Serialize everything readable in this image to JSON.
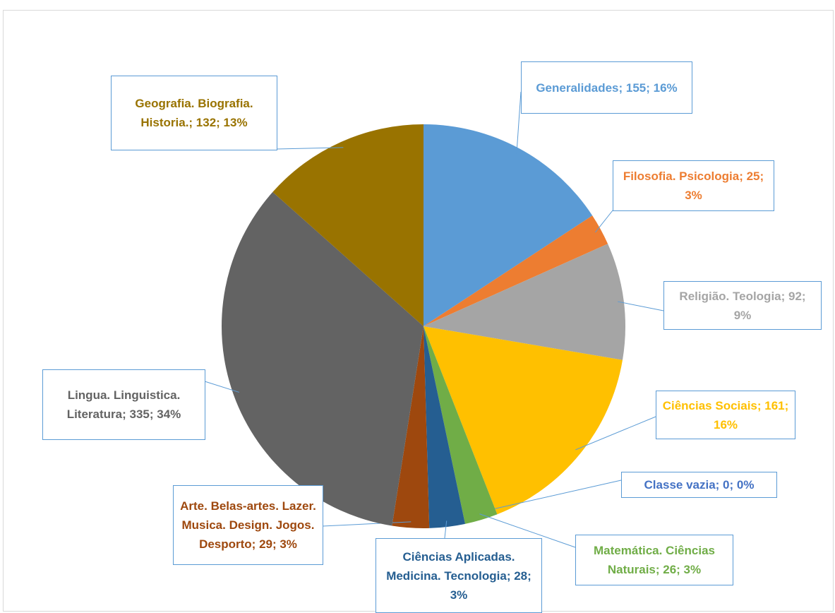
{
  "chart_data": {
    "type": "pie",
    "categories": [
      "Generalidades",
      "Filosofia. Psicologia",
      "Religião. Teologia",
      "Ciências Sociais",
      "Classe vazia",
      "Matemática. Ciências Naturais",
      "Ciências Aplicadas. Medicina. Tecnologia",
      "Arte. Belas-artes. Lazer. Musica. Design. Jogos. Desporto",
      "Lingua. Linguistica. Literatura",
      "Geografia. Biografia. Historia."
    ],
    "values": [
      155,
      25,
      92,
      161,
      0,
      26,
      28,
      29,
      335,
      132
    ],
    "value_labels": [
      "Generalidades; 155; 16%",
      "Filosofia. Psicologia; 25; 3%",
      "Religião. Teologia; 92; 9%",
      "Ciências Sociais; 161; 16%",
      "Classe vazia; 0; 0%",
      "Matemática. Ciências Naturais; 26; 3%",
      "Ciências Aplicadas. Medicina. Tecnologia; 28; 3%",
      "Arte. Belas-artes. Lazer. Musica. Design. Jogos. Desporto; 29; 3%",
      "Lingua. Linguistica. Literatura; 335; 34%",
      "Geografia. Biografia. Historia.; 132; 13%"
    ],
    "colors": [
      "#5b9bd5",
      "#ed7d31",
      "#a5a5a5",
      "#ffc000",
      "#4472c4",
      "#70ad47",
      "#255e91",
      "#9e480e",
      "#636363",
      "#997300"
    ]
  }
}
